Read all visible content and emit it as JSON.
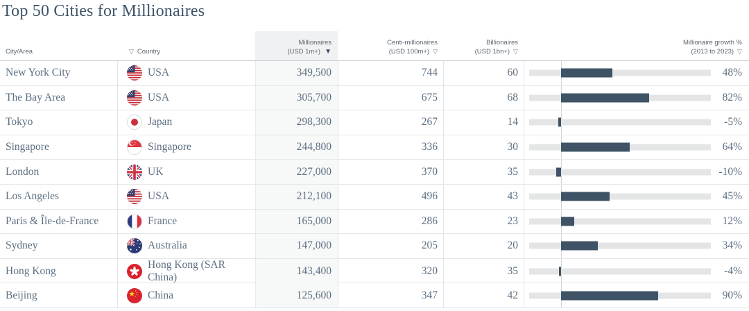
{
  "title": "Top 50 Cities for Millionaires",
  "colors": {
    "bar": "#3e5365",
    "bar_track": "#e4e5e6",
    "highlight_column_bg": "#f7f8f8",
    "title_text": "#3d5469",
    "body_text": "#5d6f81"
  },
  "columns": [
    {
      "label": "City/Area"
    },
    {
      "label": "Country",
      "filter_icon": "▽"
    },
    {
      "label_line1": "Millionaires",
      "label_line2": "(USD 1m+)",
      "sort_icon": "▼",
      "sorted": true,
      "highlighted": true
    },
    {
      "label_line1": "Centi-millionaires",
      "label_line2": "(USD 100m+)",
      "sort_icon": "▽"
    },
    {
      "label_line1": "Billionaires",
      "label_line2": "(USD 1bn+)",
      "sort_icon": "▽"
    },
    {
      "label_line1": "Millionaire growth %",
      "label_line2": "(2013 to 2023)",
      "sort_icon": "▽"
    }
  ],
  "rows": [
    {
      "city": "New York City",
      "country": "USA",
      "flag": "usa-flag",
      "millionaires": "349,500",
      "centi_millionaires": "744",
      "billionaires": "60",
      "growth_pct": 48,
      "growth_label": "48%"
    },
    {
      "city": "The Bay Area",
      "country": "USA",
      "flag": "usa-flag",
      "millionaires": "305,700",
      "centi_millionaires": "675",
      "billionaires": "68",
      "growth_pct": 82,
      "growth_label": "82%"
    },
    {
      "city": "Tokyo",
      "country": "Japan",
      "flag": "japan-flag",
      "millionaires": "298,300",
      "centi_millionaires": "267",
      "billionaires": "14",
      "growth_pct": -5,
      "growth_label": "-5%"
    },
    {
      "city": "Singapore",
      "country": "Singapore",
      "flag": "singapore-flag",
      "millionaires": "244,800",
      "centi_millionaires": "336",
      "billionaires": "30",
      "growth_pct": 64,
      "growth_label": "64%"
    },
    {
      "city": "London",
      "country": "UK",
      "flag": "uk-flag",
      "millionaires": "227,000",
      "centi_millionaires": "370",
      "billionaires": "35",
      "growth_pct": -10,
      "growth_label": "-10%"
    },
    {
      "city": "Los Angeles",
      "country": "USA",
      "flag": "usa-flag",
      "millionaires": "212,100",
      "centi_millionaires": "496",
      "billionaires": "43",
      "growth_pct": 45,
      "growth_label": "45%"
    },
    {
      "city": "Paris & Île-de-France",
      "country": "France",
      "flag": "france-flag",
      "millionaires": "165,000",
      "centi_millionaires": "286",
      "billionaires": "23",
      "growth_pct": 12,
      "growth_label": "12%"
    },
    {
      "city": "Sydney",
      "country": "Australia",
      "flag": "australia-flag",
      "millionaires": "147,000",
      "centi_millionaires": "205",
      "billionaires": "20",
      "growth_pct": 34,
      "growth_label": "34%"
    },
    {
      "city": "Hong Kong",
      "country": "Hong Kong (SAR China)",
      "flag": "hong-kong-flag",
      "millionaires": "143,400",
      "centi_millionaires": "320",
      "billionaires": "35",
      "growth_pct": -4,
      "growth_label": "-4%"
    },
    {
      "city": "Beijing",
      "country": "China",
      "flag": "china-flag",
      "millionaires": "125,600",
      "centi_millionaires": "347",
      "billionaires": "42",
      "growth_pct": 90,
      "growth_label": "90%"
    }
  ],
  "chart_data": {
    "type": "table",
    "title": "Top 50 Cities for Millionaires",
    "columns": [
      "City/Area",
      "Country",
      "Millionaires (USD 1m+)",
      "Centi-millionaires (USD 100m+)",
      "Billionaires (USD 1bn+)",
      "Millionaire growth % (2013 to 2023)"
    ],
    "rows": [
      [
        "New York City",
        "USA",
        349500,
        744,
        60,
        48
      ],
      [
        "The Bay Area",
        "USA",
        305700,
        675,
        68,
        82
      ],
      [
        "Tokyo",
        "Japan",
        298300,
        267,
        14,
        -5
      ],
      [
        "Singapore",
        "Singapore",
        244800,
        336,
        30,
        64
      ],
      [
        "London",
        "UK",
        227000,
        370,
        35,
        -10
      ],
      [
        "Los Angeles",
        "USA",
        212100,
        496,
        43,
        45
      ],
      [
        "Paris & Île-de-France",
        "France",
        165000,
        286,
        23,
        12
      ],
      [
        "Sydney",
        "Australia",
        147000,
        205,
        20,
        34
      ],
      [
        "Hong Kong",
        "Hong Kong (SAR China)",
        143400,
        320,
        35,
        -4
      ],
      [
        "Beijing",
        "China",
        125600,
        347,
        42,
        90
      ]
    ],
    "embedded_bar_chart": {
      "type": "bar",
      "orientation": "horizontal",
      "column": "Millionaire growth % (2013 to 2023)",
      "categories": [
        "New York City",
        "The Bay Area",
        "Tokyo",
        "Singapore",
        "London",
        "Los Angeles",
        "Paris & Île-de-France",
        "Sydney",
        "Hong Kong",
        "Beijing"
      ],
      "values": [
        48,
        82,
        -5,
        64,
        -10,
        45,
        12,
        34,
        -4,
        90
      ],
      "baseline": 0
    },
    "sort": {
      "column": "Millionaires (USD 1m+)",
      "direction": "desc"
    }
  }
}
